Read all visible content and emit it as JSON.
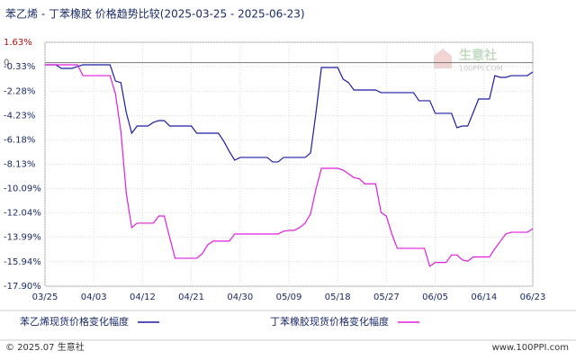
{
  "chart_data": {
    "type": "line",
    "title": "苯乙烯 - 丁苯橡胶 价格趋势比较(2025-03-25 - 2025-06-23)",
    "categories": [
      "03/25",
      null,
      null,
      null,
      null,
      null,
      null,
      null,
      null,
      "04/03",
      null,
      null,
      null,
      null,
      null,
      null,
      null,
      null,
      "04/12",
      null,
      null,
      null,
      null,
      null,
      null,
      null,
      null,
      "04/21",
      null,
      null,
      null,
      null,
      null,
      null,
      null,
      null,
      "04/30",
      null,
      null,
      null,
      null,
      null,
      null,
      null,
      null,
      "05/09",
      null,
      null,
      null,
      null,
      null,
      null,
      null,
      null,
      "05/18",
      null,
      null,
      null,
      null,
      null,
      null,
      null,
      null,
      "05/27",
      null,
      null,
      null,
      null,
      null,
      null,
      null,
      null,
      "06/05",
      null,
      null,
      null,
      null,
      null,
      null,
      null,
      null,
      "06/14",
      null,
      null,
      null,
      null,
      null,
      null,
      null,
      null,
      "06/23"
    ],
    "series": [
      {
        "name": "苯乙烯现货价格变化幅度",
        "color": "#1c1ca8",
        "values": [
          -0.17,
          -0.17,
          -0.17,
          -0.46,
          -0.46,
          -0.46,
          -0.3,
          -0.17,
          -0.17,
          -0.17,
          -0.17,
          -0.17,
          -0.17,
          -1.47,
          -1.6,
          -4.0,
          -5.65,
          -5.07,
          -5.07,
          -5.07,
          -4.78,
          -4.64,
          -4.64,
          -5.07,
          -5.07,
          -5.07,
          -5.07,
          -5.07,
          -5.65,
          -5.65,
          -5.65,
          -5.65,
          -5.65,
          -6.3,
          -7.1,
          -7.81,
          -7.59,
          -7.59,
          -7.59,
          -7.59,
          -7.59,
          -7.59,
          -7.95,
          -7.95,
          -7.59,
          -7.59,
          -7.59,
          -7.59,
          -7.59,
          -7.23,
          -4.0,
          -0.39,
          -0.39,
          -0.39,
          -0.39,
          -1.32,
          -1.6,
          -2.19,
          -2.19,
          -2.19,
          -2.19,
          -2.19,
          -2.4,
          -2.4,
          -2.4,
          -2.4,
          -2.4,
          -2.4,
          -2.4,
          -3.05,
          -3.05,
          -3.05,
          -4.06,
          -4.06,
          -4.06,
          -4.06,
          -5.21,
          -5.07,
          -5.07,
          -4.0,
          -2.91,
          -2.91,
          -2.91,
          -1.04,
          -1.18,
          -1.18,
          -1.04,
          -1.04,
          -1.04,
          -1.04,
          -0.75
        ]
      },
      {
        "name": "丁苯橡胶现货价格变化幅度",
        "color": "#e01ee0",
        "values": [
          -0.17,
          -0.17,
          -0.17,
          -0.17,
          -0.17,
          -0.17,
          -0.17,
          -1.04,
          -1.04,
          -1.04,
          -1.04,
          -1.04,
          -1.04,
          -2.5,
          -5.5,
          -10.47,
          -13.21,
          -12.85,
          -12.85,
          -12.85,
          -12.85,
          -12.28,
          -12.28,
          -14.0,
          -15.66,
          -15.66,
          -15.66,
          -15.66,
          -15.66,
          -15.3,
          -14.6,
          -14.29,
          -14.29,
          -14.29,
          -14.29,
          -13.72,
          -13.72,
          -13.72,
          -13.72,
          -13.72,
          -13.72,
          -13.72,
          -13.72,
          -13.72,
          -13.5,
          -13.43,
          -13.43,
          -13.2,
          -12.85,
          -12.1,
          -10.11,
          -8.46,
          -8.46,
          -8.46,
          -8.46,
          -8.6,
          -8.9,
          -9.2,
          -9.3,
          -9.7,
          -9.7,
          -9.7,
          -11.99,
          -12.3,
          -13.72,
          -14.87,
          -14.87,
          -14.87,
          -14.87,
          -14.87,
          -14.87,
          -16.31,
          -16.0,
          -16.0,
          -16.0,
          -15.4,
          -15.4,
          -15.8,
          -15.9,
          -15.56,
          -15.56,
          -15.56,
          -15.56,
          -14.9,
          -14.3,
          -13.72,
          -13.58,
          -13.58,
          -13.58,
          -13.58,
          -13.3
        ]
      }
    ],
    "ylim": [
      -17.9,
      1.63
    ],
    "yticks": [
      {
        "value": 1.63,
        "label": "1.63%"
      },
      0,
      {
        "value": -0.33,
        "label": "-0.33%"
      },
      {
        "value": -2.28,
        "label": "-2.28%"
      },
      {
        "value": -4.23,
        "label": "-4.23%"
      },
      {
        "value": -6.18,
        "label": "-6.18%"
      },
      {
        "value": -8.13,
        "label": "-8.13%"
      },
      {
        "value": -10.09,
        "label": "-10.09%"
      },
      {
        "value": -12.04,
        "label": "-12.04%"
      },
      {
        "value": -13.99,
        "label": "-13.99%"
      },
      {
        "value": -15.94,
        "label": "-15.94%"
      },
      {
        "value": -17.9,
        "label": "-17.90%"
      }
    ],
    "grid": true,
    "watermark": "生意社",
    "watermark_sub": "100PPI.COM",
    "footer_left": "© 2025.07 生意社",
    "footer_right": "www.100PPI.com"
  }
}
